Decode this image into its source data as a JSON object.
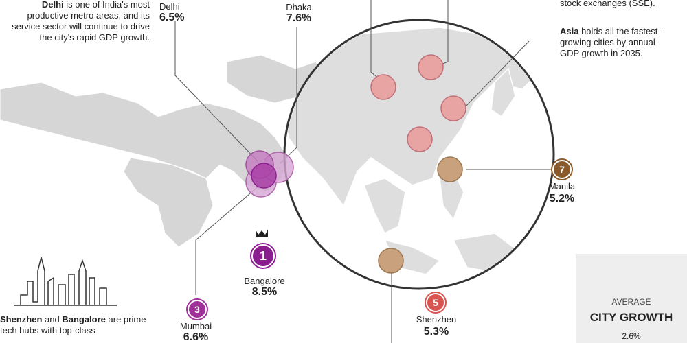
{
  "notes": {
    "delhi": {
      "bold": "Delhi",
      "text": " is one of India's most productive metro areas, and its service sector will continue to drive the city's rapid GDP growth."
    },
    "sse": {
      "text": "stock exchanges (SSE)."
    },
    "asia": {
      "bold": "Asia",
      "text": " holds all the fastest-growing cities by annual GDP growth in 2035."
    },
    "tech": {
      "bold1": "Shenzhen",
      "mid": " and ",
      "bold2": "Bangalore",
      "text": " are prime tech hubs with top-class"
    }
  },
  "cities": [
    {
      "rank": "1",
      "name": "Bangalore",
      "growth": "8.5%"
    },
    {
      "rank": "3",
      "name": "Mumbai",
      "growth": "6.6%"
    },
    {
      "rank": "5",
      "name": "Shenzhen",
      "growth": "5.3%"
    },
    {
      "rank": "7",
      "name": "Manila",
      "growth": "5.2%"
    },
    {
      "name": "Delhi",
      "growth": "6.5%"
    },
    {
      "name": "Dhaka",
      "growth": "7.6%"
    }
  ],
  "average": {
    "label": "AVERAGE",
    "title": "CITY GROWTH",
    "value": "2.6%"
  }
}
